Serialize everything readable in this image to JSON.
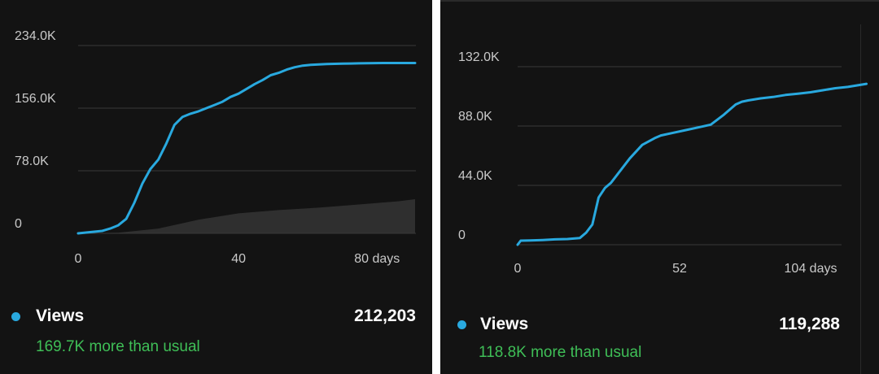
{
  "colors": {
    "views_line": "#29a9df",
    "usual_area": "#3a3a3a",
    "more_text": "#3fbf57",
    "panel_bg": "#131313"
  },
  "chart_data": [
    {
      "type": "line",
      "ylim": [
        0,
        234000
      ],
      "yticks": [
        "0",
        "78.0K",
        "156.0K",
        "234.0K"
      ],
      "xlim": [
        0,
        84
      ],
      "xtick_values": [
        0,
        40,
        80
      ],
      "xticks": [
        "0",
        "40",
        "80 days"
      ],
      "grid": true,
      "series": [
        {
          "name": "Views",
          "x": [
            0,
            2,
            4,
            6,
            8,
            10,
            12,
            14,
            16,
            18,
            20,
            22,
            24,
            26,
            28,
            30,
            32,
            34,
            36,
            38,
            40,
            42,
            44,
            46,
            48,
            50,
            52,
            54,
            56,
            58,
            60,
            62,
            64,
            66,
            68,
            70,
            72,
            74,
            76,
            78,
            80,
            82,
            84
          ],
          "values": [
            0,
            1000,
            2000,
            3000,
            6000,
            10000,
            18000,
            38000,
            62000,
            80000,
            92000,
            112000,
            135000,
            145000,
            149000,
            152000,
            156000,
            160000,
            164000,
            170000,
            174000,
            180000,
            186000,
            191000,
            197000,
            200000,
            204000,
            207000,
            209000,
            210000,
            210500,
            211000,
            211200,
            211400,
            211600,
            211800,
            212000,
            212100,
            212200,
            212203,
            212203,
            212203,
            212203
          ]
        },
        {
          "name": "usual",
          "x": [
            0,
            10,
            20,
            30,
            40,
            50,
            60,
            70,
            80,
            84
          ],
          "values": [
            0,
            800,
            6000,
            17000,
            25000,
            29000,
            32000,
            36000,
            40000,
            42500
          ]
        }
      ],
      "legend": {
        "label": "Views",
        "value": "212,203",
        "sub": "169.7K more than usual"
      }
    },
    {
      "type": "line",
      "ylim": [
        0,
        132000
      ],
      "yticks": [
        "0",
        "44.0K",
        "88.0K",
        "132.0K"
      ],
      "xlim": [
        0,
        104
      ],
      "xtick_values": [
        0,
        52,
        104
      ],
      "xticks": [
        "0",
        "52",
        "104 days"
      ],
      "grid": true,
      "series": [
        {
          "name": "Views",
          "x": [
            0,
            1,
            4,
            8,
            12,
            16,
            20,
            22,
            24,
            26,
            28,
            30,
            32,
            36,
            40,
            44,
            46,
            50,
            54,
            58,
            62,
            66,
            70,
            72,
            74,
            78,
            82,
            86,
            90,
            94,
            98,
            102,
            106,
            110,
            112
          ],
          "values": [
            0,
            3000,
            3200,
            3500,
            4000,
            4200,
            5000,
            9000,
            15000,
            35000,
            42000,
            46000,
            52000,
            64000,
            74000,
            79000,
            81000,
            83000,
            85000,
            87000,
            89000,
            96000,
            104000,
            106000,
            107000,
            108500,
            109500,
            111000,
            112000,
            113000,
            114500,
            116000,
            117000,
            118500,
            119288
          ]
        }
      ],
      "legend": {
        "label": "Views",
        "value": "119,288",
        "sub": "118.8K more than usual"
      }
    }
  ]
}
